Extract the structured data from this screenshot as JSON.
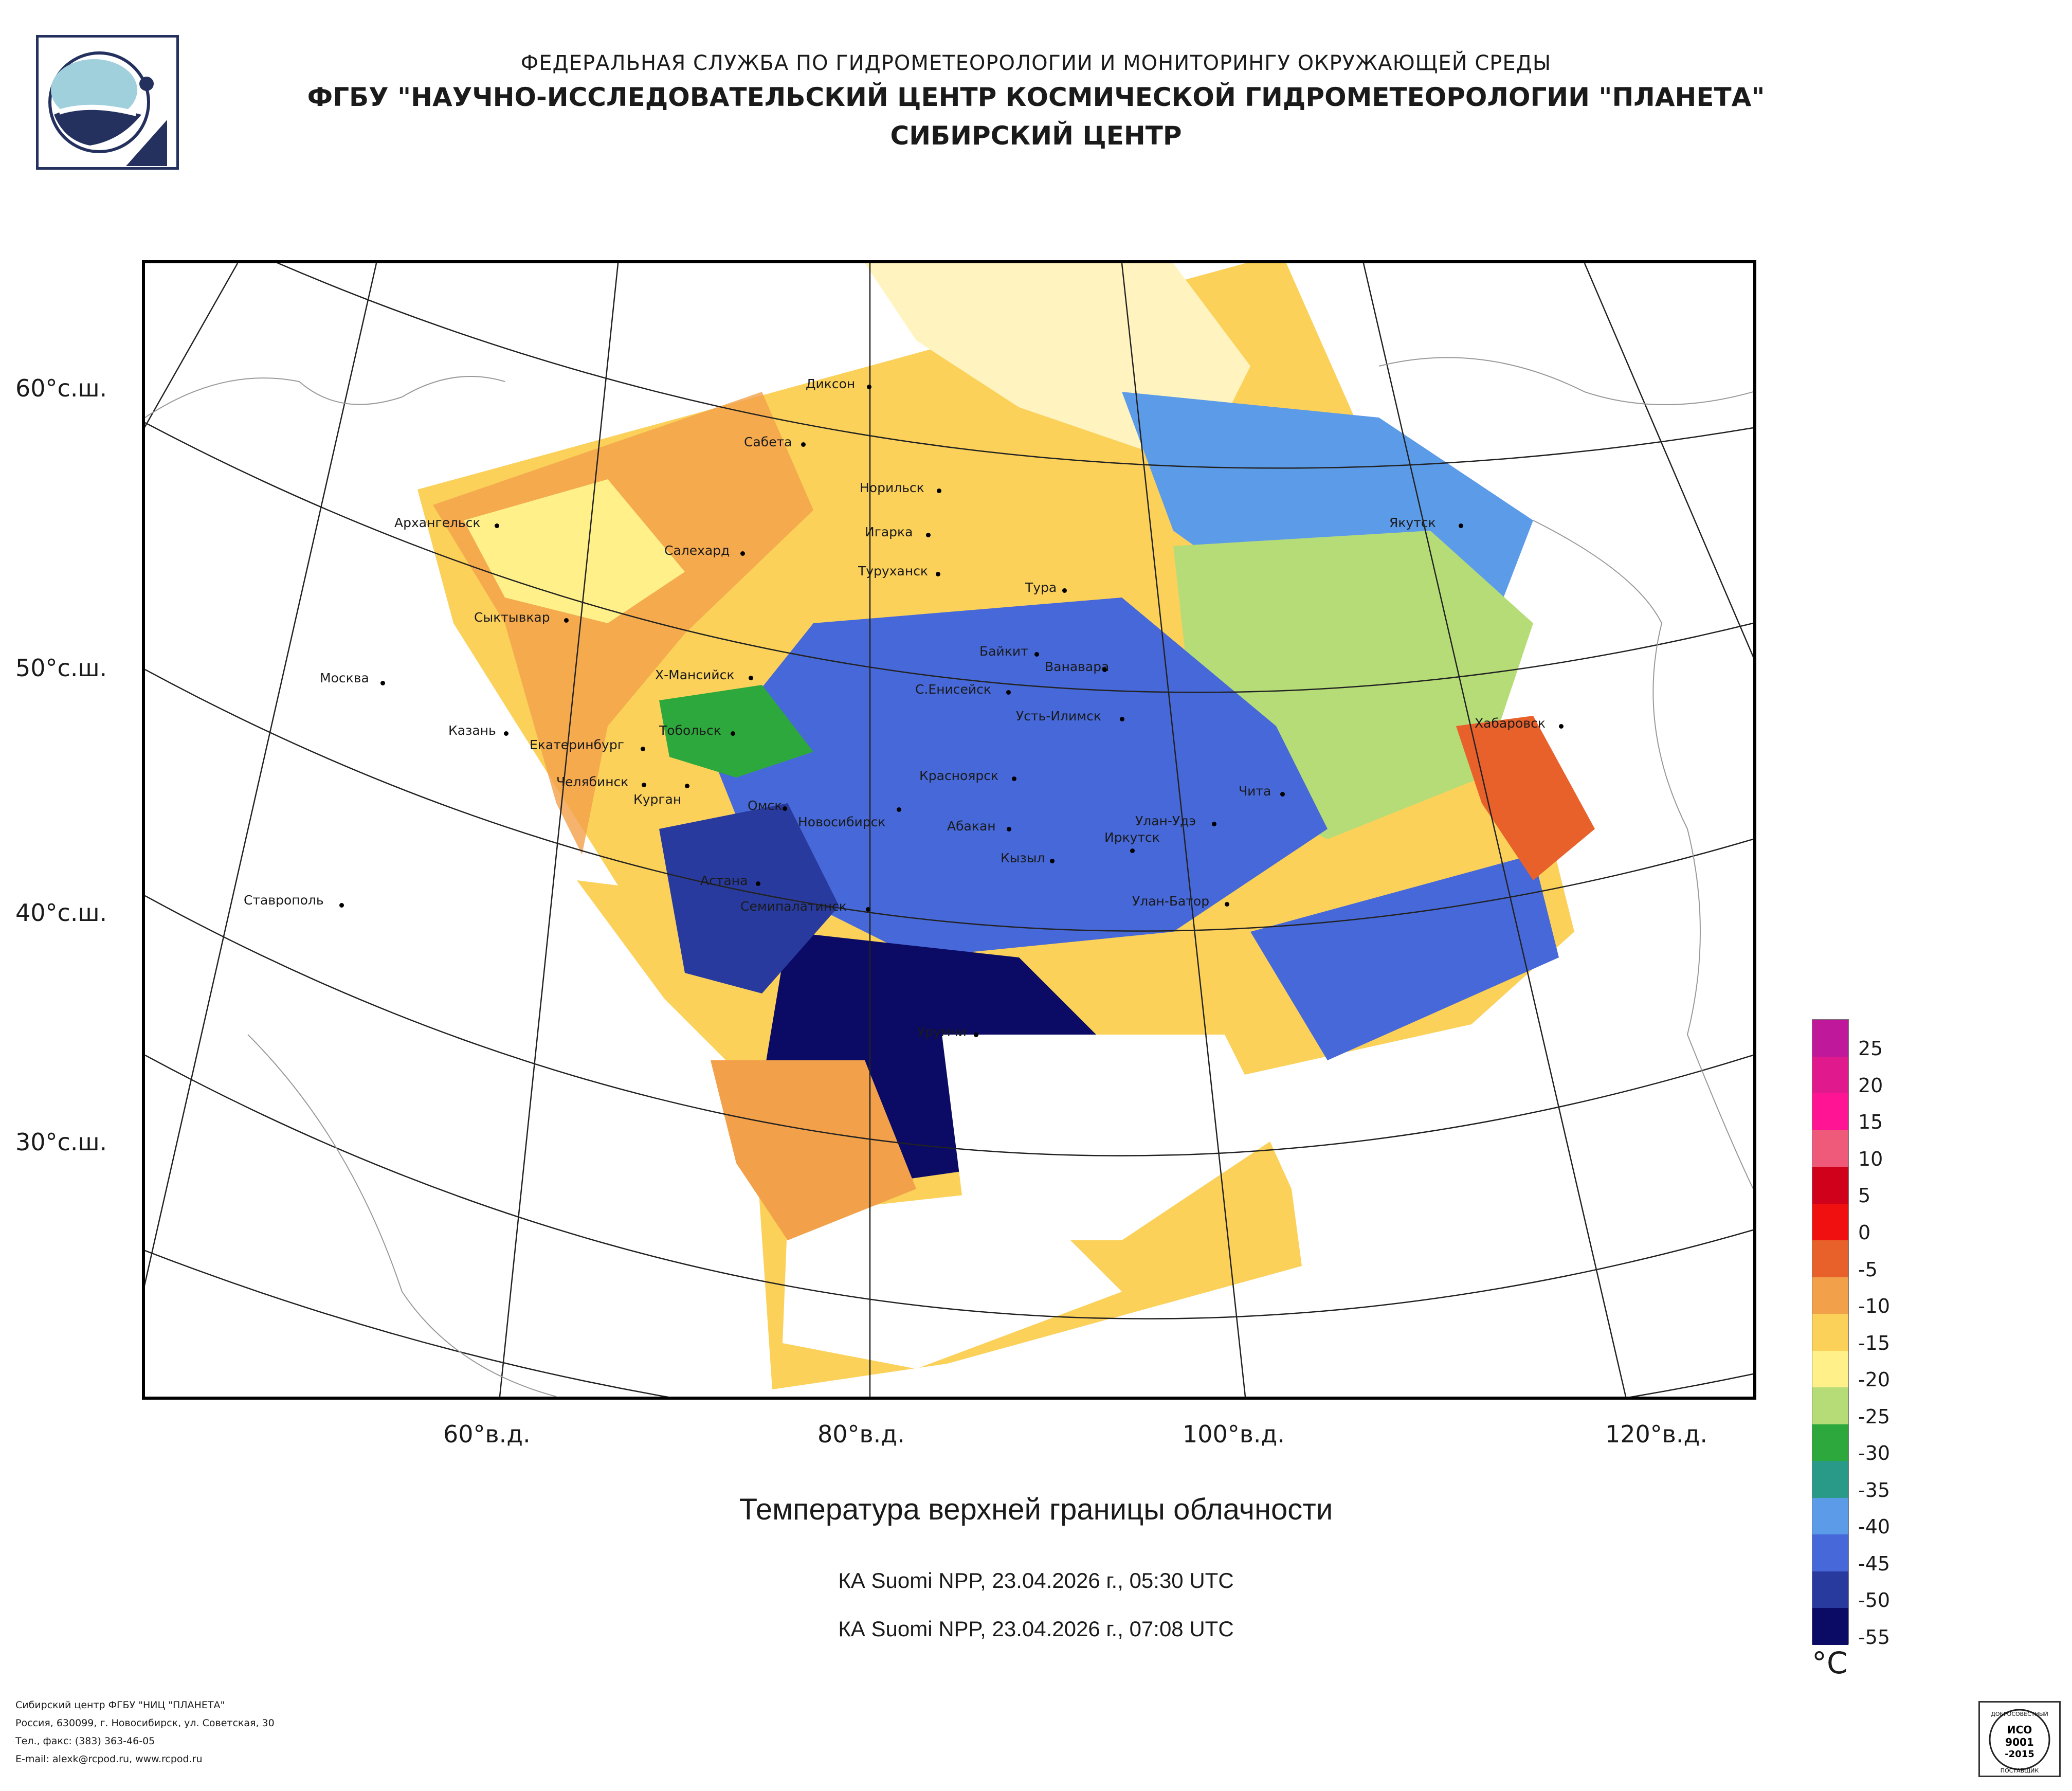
{
  "header": {
    "line1": "ФЕДЕРАЛЬНАЯ СЛУЖБА ПО ГИДРОМЕТЕОРОЛОГИИ И МОНИТОРИНГУ ОКРУЖАЮЩЕЙ СРЕДЫ",
    "line2": "ФГБУ \"НАУЧНО-ИССЛЕДОВАТЕЛЬСКИЙ ЦЕНТР КОСМИЧЕСКОЙ ГИДРОМЕТЕОРОЛОГИИ \"ПЛАНЕТА\"",
    "line3": "СИБИРСКИЙ ЦЕНТР"
  },
  "map": {
    "lat_labels": [
      "60°с.ш.",
      "50°с.ш.",
      "40°с.ш.",
      "30°с.ш."
    ],
    "lon_labels": [
      "60°в.д.",
      "80°в.д.",
      "100°в.д.",
      "120°в.д."
    ],
    "cities": [
      "Диксон",
      "Сабета",
      "Норильск",
      "Архангельск",
      "Игарка",
      "Якутск",
      "Салехард",
      "Туруханск",
      "Тура",
      "Сыктывкар",
      "Байкит",
      "Ванавара",
      "Москва",
      "Х-Мансийск",
      "С.Енисейск",
      "Усть-Илимск",
      "Хабаровск",
      "Казань",
      "Тобольск",
      "Екатеринбург",
      "Красноярск",
      "Челябинск",
      "Курган",
      "Омск",
      "Чита",
      "Новосибирск",
      "Абакан",
      "Улан-Удэ",
      "Иркутск",
      "Кызыл",
      "Астана",
      "Ставрополь",
      "Семипалатинск",
      "Улан-Батор",
      "Урумчи"
    ]
  },
  "caption": {
    "title": "Температура верхней границы облачности",
    "pass1": "КА Suomi NPP, 23.04.2026 г., 05:30 UTC",
    "pass2": "КА Suomi NPP, 23.04.2026 г., 07:08 UTC"
  },
  "legend": {
    "unit": "°C",
    "labels": [
      "25",
      "20",
      "15",
      "10",
      "5",
      "0",
      "-5",
      "-10",
      "-15",
      "-20",
      "-25",
      "-30",
      "-35",
      "-40",
      "-45",
      "-50",
      "-55"
    ],
    "colors": [
      "#c0189a",
      "#e01a8c",
      "#ff1493",
      "#f05a7a",
      "#d0021b",
      "#f01010",
      "#e8602a",
      "#f2a04a",
      "#fbd15a",
      "#fff08a",
      "#b6dc78",
      "#2ca83c",
      "#2a9a88",
      "#5c9be8",
      "#4668d8",
      "#283a9e",
      "#0b0b66"
    ]
  },
  "footer": {
    "line1": "Сибирский центр ФГБУ \"НИЦ \"ПЛАНЕТА\"",
    "line2": "Россия, 630099, г. Новосибирск, ул. Советская, 30",
    "line3": "Тел., факс: (383) 363-46-05",
    "line4": "E-mail: alexk@rcpod.ru, www.rcpod.ru"
  },
  "iso_badge": {
    "top": "ДОБРОСОВЕСТНЫЙ",
    "line1": "ИСО",
    "line2": "9001",
    "line3": "-2015",
    "bottom": "ПОСТАВЩИК"
  }
}
